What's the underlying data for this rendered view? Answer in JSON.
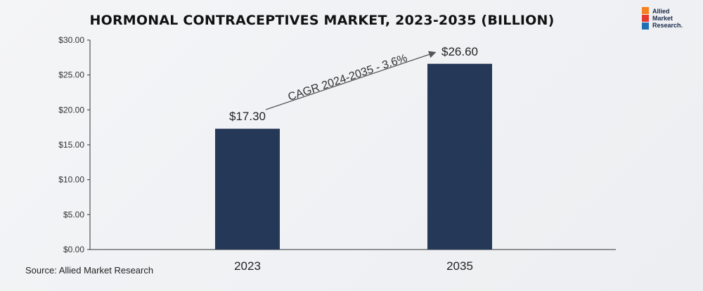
{
  "title": "HORMONAL CONTRACEPTIVES MARKET, 2023-2035 (BILLION)",
  "logo": {
    "text": "Allied\nMarket\nResearch."
  },
  "source": "Source: Allied Market Research",
  "annotation": {
    "text": "CAGR 2024-2035 - 3.6%"
  },
  "colors": {
    "bar": "#253858",
    "axis": "#333333",
    "logo_orange": "#f5821f",
    "logo_red": "#e63a2e",
    "logo_blue": "#1f6fb5"
  },
  "chart_data": {
    "type": "bar",
    "title": "HORMONAL CONTRACEPTIVES MARKET, 2023-2035 (BILLION)",
    "categories": [
      "2023",
      "2035"
    ],
    "values": [
      17.3,
      26.6
    ],
    "value_labels": [
      "$17.30",
      "$26.60"
    ],
    "ylim": [
      0,
      30
    ],
    "yticks": [
      0,
      5,
      10,
      15,
      20,
      25,
      30
    ],
    "ytick_labels": [
      "$0.00",
      "$5.00",
      "$10.00",
      "$15.00",
      "$20.00",
      "$25.00",
      "$30.00"
    ],
    "xlabel": "",
    "ylabel": "",
    "grid": false,
    "legend": "none"
  }
}
